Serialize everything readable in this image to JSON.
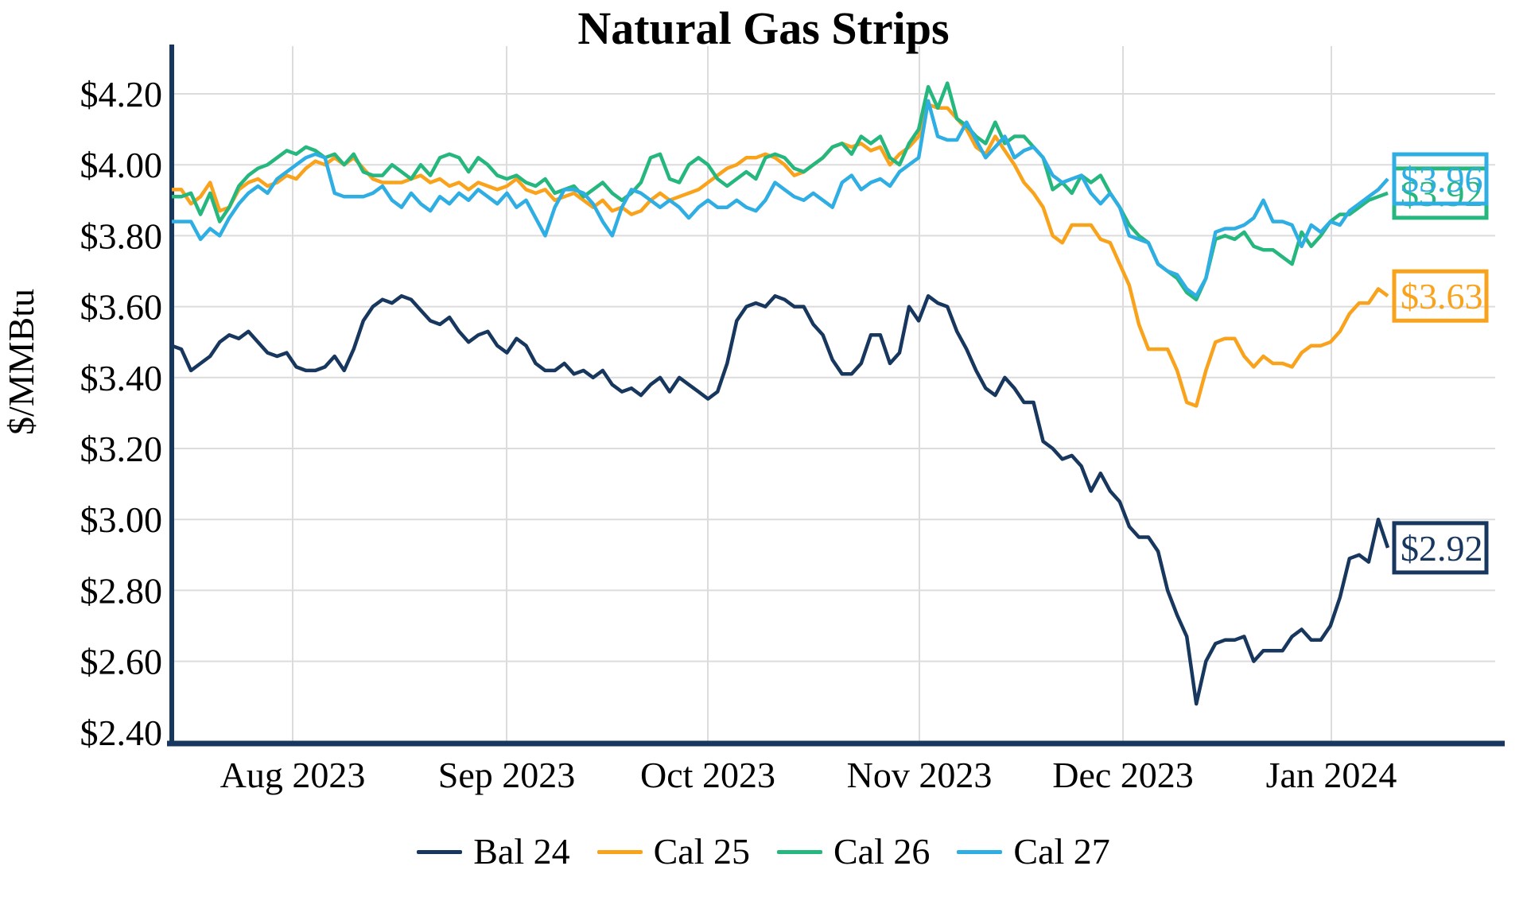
{
  "title": "Natural Gas Strips",
  "y_axis": {
    "label": "$/MMBtu",
    "ticks": [
      "$4.20",
      "$4.00",
      "$3.80",
      "$3.60",
      "$3.40",
      "$3.20",
      "$3.00",
      "$2.80",
      "$2.60",
      "$2.40"
    ],
    "tick_values": [
      4.2,
      4.0,
      3.8,
      3.6,
      3.4,
      3.2,
      3.0,
      2.8,
      2.6,
      2.4
    ]
  },
  "x_axis": {
    "ticks": [
      "Aug 2023",
      "Sep 2023",
      "Oct 2023",
      "Nov 2023",
      "Dec 2023",
      "Jan 2024"
    ]
  },
  "colors": {
    "axis": "#17375E",
    "gridline": "#DCDCDC",
    "bal24": "#17375E",
    "cal25": "#F9A21C",
    "cal26": "#26B77E",
    "cal27": "#2FAEE3"
  },
  "legend": [
    {
      "label": "Bal 24",
      "color": "#17375E"
    },
    {
      "label": "Cal 25",
      "color": "#F9A21C"
    },
    {
      "label": "Cal 26",
      "color": "#26B77E"
    },
    {
      "label": "Cal 27",
      "color": "#2FAEE3"
    }
  ],
  "end_labels": [
    {
      "text": "$2.92",
      "value": 2.92,
      "color": "#17375E",
      "series": "Bal 24"
    },
    {
      "text": "$3.63",
      "value": 3.63,
      "color": "#F9A21C",
      "series": "Cal 25"
    },
    {
      "text": "$3.92",
      "value": 3.92,
      "color": "#26B77E",
      "series": "Cal 26"
    },
    {
      "text": "$3.96",
      "value": 3.96,
      "color": "#2FAEE3",
      "series": "Cal 27"
    }
  ],
  "chart_data": {
    "type": "line",
    "title": "Natural Gas Strips",
    "xlabel": "",
    "ylabel": "$/MMBtu",
    "ylim": [
      2.4,
      4.3
    ],
    "y_tick_values": [
      4.2,
      4.0,
      3.8,
      3.6,
      3.4,
      3.2,
      3.0,
      2.8,
      2.6,
      2.4
    ],
    "x_range": "daily strip prices, mid-Jul 2023 through late-Jan 2024",
    "month_gridlines": [
      "Aug 2023",
      "Sep 2023",
      "Oct 2023",
      "Nov 2023",
      "Dec 2023",
      "Jan 2024"
    ],
    "grid": true,
    "legend_position": "bottom",
    "series": [
      {
        "name": "Bal 24",
        "color": "#17375E",
        "end_label": "$2.92",
        "values": [
          3.49,
          3.48,
          3.42,
          3.44,
          3.46,
          3.5,
          3.52,
          3.51,
          3.53,
          3.5,
          3.47,
          3.46,
          3.47,
          3.43,
          3.42,
          3.42,
          3.43,
          3.46,
          3.42,
          3.48,
          3.56,
          3.6,
          3.62,
          3.61,
          3.63,
          3.62,
          3.59,
          3.56,
          3.55,
          3.57,
          3.53,
          3.5,
          3.52,
          3.53,
          3.49,
          3.47,
          3.51,
          3.49,
          3.44,
          3.42,
          3.42,
          3.44,
          3.41,
          3.42,
          3.4,
          3.42,
          3.38,
          3.36,
          3.37,
          3.35,
          3.38,
          3.4,
          3.36,
          3.4,
          3.38,
          3.36,
          3.34,
          3.36,
          3.44,
          3.56,
          3.6,
          3.61,
          3.6,
          3.63,
          3.62,
          3.6,
          3.6,
          3.55,
          3.52,
          3.45,
          3.41,
          3.41,
          3.44,
          3.52,
          3.52,
          3.44,
          3.47,
          3.6,
          3.56,
          3.63,
          3.61,
          3.6,
          3.53,
          3.48,
          3.42,
          3.37,
          3.35,
          3.4,
          3.37,
          3.33,
          3.33,
          3.22,
          3.2,
          3.17,
          3.18,
          3.15,
          3.08,
          3.13,
          3.08,
          3.05,
          2.98,
          2.95,
          2.95,
          2.91,
          2.8,
          2.73,
          2.67,
          2.48,
          2.6,
          2.65,
          2.66,
          2.66,
          2.67,
          2.6,
          2.63,
          2.63,
          2.63,
          2.67,
          2.69,
          2.66,
          2.66,
          2.7,
          2.78,
          2.89,
          2.9,
          2.88,
          3.0,
          2.92
        ]
      },
      {
        "name": "Cal 25",
        "color": "#F9A21C",
        "end_label": "$3.63",
        "values": [
          3.93,
          3.93,
          3.89,
          3.91,
          3.95,
          3.87,
          3.88,
          3.93,
          3.95,
          3.96,
          3.94,
          3.95,
          3.97,
          3.96,
          3.99,
          4.01,
          4.0,
          4.02,
          4.0,
          4.02,
          3.99,
          3.96,
          3.95,
          3.95,
          3.95,
          3.96,
          3.97,
          3.95,
          3.96,
          3.94,
          3.95,
          3.93,
          3.95,
          3.94,
          3.93,
          3.94,
          3.96,
          3.93,
          3.92,
          3.93,
          3.9,
          3.91,
          3.92,
          3.9,
          3.88,
          3.9,
          3.87,
          3.88,
          3.86,
          3.87,
          3.9,
          3.92,
          3.9,
          3.91,
          3.92,
          3.93,
          3.95,
          3.97,
          3.99,
          4.0,
          4.02,
          4.02,
          4.03,
          4.02,
          4.0,
          3.97,
          3.98,
          4.0,
          4.02,
          4.05,
          4.06,
          4.05,
          4.06,
          4.04,
          4.05,
          4.0,
          4.03,
          4.05,
          4.08,
          4.17,
          4.16,
          4.16,
          4.13,
          4.1,
          4.05,
          4.03,
          4.08,
          4.04,
          4.0,
          3.95,
          3.92,
          3.88,
          3.8,
          3.78,
          3.83,
          3.83,
          3.83,
          3.79,
          3.78,
          3.72,
          3.66,
          3.55,
          3.48,
          3.48,
          3.48,
          3.42,
          3.33,
          3.32,
          3.42,
          3.5,
          3.51,
          3.51,
          3.46,
          3.43,
          3.46,
          3.44,
          3.44,
          3.43,
          3.47,
          3.49,
          3.49,
          3.5,
          3.53,
          3.58,
          3.61,
          3.61,
          3.65,
          3.63
        ]
      },
      {
        "name": "Cal 26",
        "color": "#26B77E",
        "end_label": "$3.92",
        "values": [
          3.91,
          3.91,
          3.92,
          3.86,
          3.92,
          3.84,
          3.88,
          3.94,
          3.97,
          3.99,
          4.0,
          4.02,
          4.04,
          4.03,
          4.05,
          4.04,
          4.02,
          4.03,
          4.0,
          4.03,
          3.98,
          3.97,
          3.97,
          4.0,
          3.98,
          3.96,
          4.0,
          3.97,
          4.02,
          4.03,
          4.02,
          3.98,
          4.02,
          4.0,
          3.97,
          3.96,
          3.97,
          3.95,
          3.94,
          3.96,
          3.92,
          3.93,
          3.94,
          3.91,
          3.93,
          3.95,
          3.92,
          3.9,
          3.92,
          3.95,
          4.02,
          4.03,
          3.96,
          3.95,
          4.0,
          4.02,
          4.0,
          3.96,
          3.94,
          3.96,
          3.98,
          3.96,
          4.02,
          4.03,
          4.02,
          3.99,
          3.98,
          4.0,
          4.02,
          4.05,
          4.06,
          4.03,
          4.08,
          4.06,
          4.08,
          4.02,
          4.0,
          4.06,
          4.1,
          4.22,
          4.16,
          4.23,
          4.13,
          4.11,
          4.08,
          4.06,
          4.12,
          4.06,
          4.08,
          4.08,
          4.05,
          4.02,
          3.93,
          3.95,
          3.92,
          3.97,
          3.95,
          3.97,
          3.92,
          3.88,
          3.83,
          3.8,
          3.78,
          3.72,
          3.7,
          3.68,
          3.64,
          3.62,
          3.68,
          3.79,
          3.8,
          3.79,
          3.81,
          3.77,
          3.76,
          3.76,
          3.74,
          3.72,
          3.81,
          3.77,
          3.8,
          3.84,
          3.86,
          3.86,
          3.88,
          3.9,
          3.91,
          3.92
        ]
      },
      {
        "name": "Cal 27",
        "color": "#2FAEE3",
        "end_label": "$3.96",
        "values": [
          3.84,
          3.84,
          3.84,
          3.79,
          3.82,
          3.8,
          3.85,
          3.89,
          3.92,
          3.94,
          3.92,
          3.96,
          3.98,
          4.0,
          4.02,
          4.03,
          4.02,
          3.92,
          3.91,
          3.91,
          3.91,
          3.92,
          3.94,
          3.9,
          3.88,
          3.92,
          3.89,
          3.87,
          3.91,
          3.89,
          3.92,
          3.9,
          3.93,
          3.91,
          3.89,
          3.92,
          3.88,
          3.9,
          3.85,
          3.8,
          3.88,
          3.93,
          3.93,
          3.92,
          3.89,
          3.84,
          3.8,
          3.88,
          3.93,
          3.92,
          3.9,
          3.88,
          3.9,
          3.88,
          3.85,
          3.88,
          3.9,
          3.88,
          3.88,
          3.9,
          3.88,
          3.87,
          3.9,
          3.95,
          3.93,
          3.91,
          3.9,
          3.92,
          3.9,
          3.88,
          3.95,
          3.97,
          3.93,
          3.95,
          3.96,
          3.94,
          3.98,
          4.0,
          4.02,
          4.18,
          4.08,
          4.07,
          4.07,
          4.12,
          4.07,
          4.02,
          4.05,
          4.08,
          4.02,
          4.04,
          4.05,
          4.02,
          3.97,
          3.95,
          3.96,
          3.97,
          3.92,
          3.89,
          3.92,
          3.88,
          3.8,
          3.79,
          3.78,
          3.72,
          3.7,
          3.69,
          3.65,
          3.63,
          3.68,
          3.81,
          3.82,
          3.82,
          3.83,
          3.85,
          3.9,
          3.84,
          3.84,
          3.83,
          3.77,
          3.83,
          3.81,
          3.84,
          3.83,
          3.87,
          3.89,
          3.91,
          3.93,
          3.96
        ]
      }
    ]
  }
}
